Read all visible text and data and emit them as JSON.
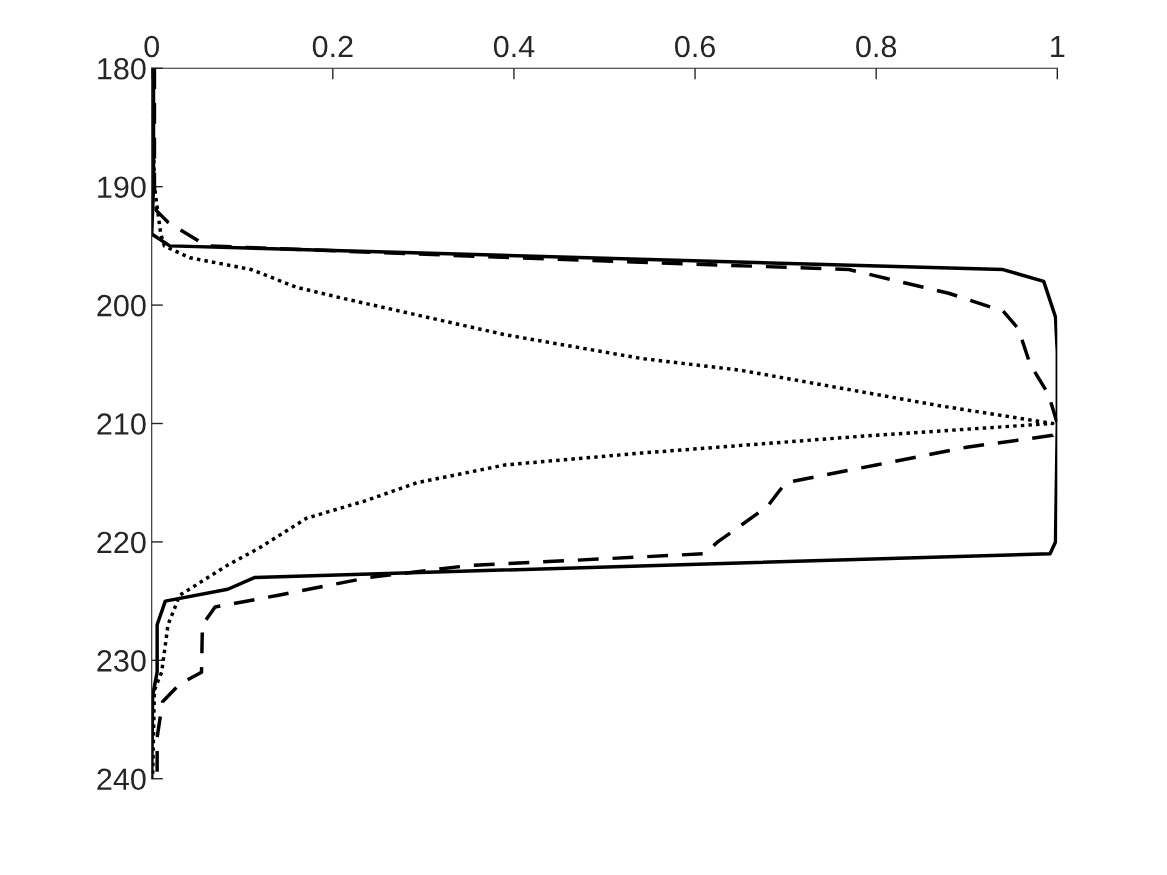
{
  "chart_data": {
    "type": "line",
    "xlim": [
      0,
      1
    ],
    "xticks": [
      0,
      0.2,
      0.4,
      0.6,
      0.8,
      1
    ],
    "ylim": [
      240,
      180
    ],
    "yticks": [
      180,
      190,
      200,
      210,
      220,
      230,
      240
    ],
    "grid": false,
    "series": [
      {
        "color": "#000000",
        "line_style": "solid",
        "x": [
          0.002,
          0.002,
          0.0,
          0.02,
          0.94,
          0.985,
          0.998,
          1.0,
          1.0,
          0.998,
          0.992,
          0.114,
          0.084,
          0.015,
          0.006,
          0.006,
          0.001,
          0.0
        ],
        "values": [
          180,
          190,
          194,
          195,
          197,
          198,
          201,
          204,
          210,
          220,
          221,
          223,
          224,
          225,
          227,
          231,
          233,
          240
        ]
      },
      {
        "color": "#000000",
        "line_style": "dashed",
        "x": [
          0.003,
          0.003,
          0.005,
          0.018,
          0.05,
          0.06,
          0.4,
          0.77,
          0.88,
          0.94,
          0.957,
          0.97,
          0.99,
          1.0,
          0.995,
          0.9,
          0.8,
          0.7,
          0.69,
          0.68,
          0.625,
          0.61,
          0.35,
          0.24,
          0.14,
          0.07,
          0.056,
          0.055,
          0.031,
          0.012,
          0.006,
          0.006
        ],
        "values": [
          180,
          190,
          192,
          193,
          194.5,
          195,
          196,
          197,
          199,
          200.5,
          202,
          205,
          207.5,
          210,
          211,
          212,
          213.5,
          215,
          216,
          217,
          220,
          221,
          222,
          223,
          224.5,
          225.5,
          227,
          231,
          232,
          233.5,
          236.5,
          240
        ]
      },
      {
        "color": "#000000",
        "line_style": "dotted",
        "x": [
          0.0,
          0.003,
          0.01,
          0.014,
          0.042,
          0.11,
          0.16,
          0.215,
          0.39,
          0.54,
          0.65,
          0.87,
          0.995,
          0.797,
          0.54,
          0.39,
          0.293,
          0.237,
          0.171,
          0.119,
          0.083,
          0.031,
          0.018,
          0.011,
          0.003,
          0.001
        ],
        "values": [
          180,
          190,
          194,
          195,
          196,
          197,
          198.5,
          199.5,
          202.5,
          204.5,
          205.5,
          208.5,
          210,
          211,
          212.5,
          213.5,
          215,
          216.5,
          218,
          220.5,
          222,
          224.5,
          227,
          231,
          232.5,
          240
        ]
      }
    ]
  }
}
